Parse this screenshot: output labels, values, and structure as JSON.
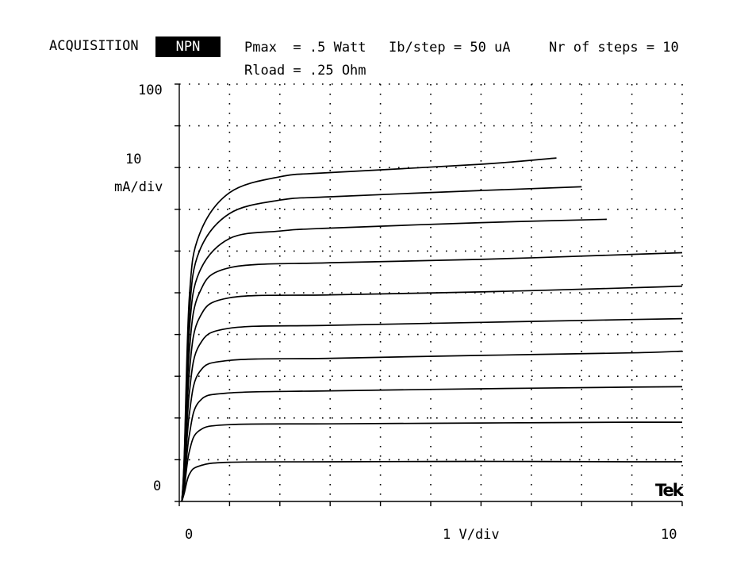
{
  "header": {
    "mode_label": "ACQUISITION",
    "device_type": "NPN",
    "pmax": "Pmax  = .5 Watt",
    "rload": "Rload = .25 Ohm",
    "ib_step": "Ib/step = 50 uA",
    "steps": "Nr of steps = 10"
  },
  "brand": "Tek",
  "chart_data": {
    "type": "line",
    "title": "",
    "xlabel": "1 V/div",
    "ylabel": "10 mA/div",
    "y_tick_labels": {
      "top": "100",
      "scale_value": "10",
      "scale_unit": "mA/div",
      "bottom": "0"
    },
    "x_tick_labels": {
      "left": "0",
      "center": "1 V/div",
      "right": "10"
    },
    "xlim": [
      0,
      10
    ],
    "ylim": [
      0,
      100
    ],
    "x_divisions": 10,
    "y_divisions": 10,
    "grid": true,
    "series": [
      {
        "x": [
          0.05,
          0.1,
          0.2,
          0.4,
          1.0,
          3.0,
          6.0,
          9.0,
          10.0
        ],
        "y": [
          0,
          2,
          6.5,
          8.5,
          9.4,
          9.5,
          9.6,
          9.5,
          9.5
        ]
      },
      {
        "x": [
          0.05,
          0.1,
          0.2,
          0.4,
          1.0,
          3.0,
          6.0,
          9.0,
          10.0
        ],
        "y": [
          0,
          3,
          12,
          17,
          18.4,
          18.6,
          18.8,
          19.0,
          19.0
        ]
      },
      {
        "x": [
          0.05,
          0.1,
          0.2,
          0.4,
          1.0,
          3.0,
          6.0,
          9.0,
          10.0
        ],
        "y": [
          0,
          4,
          16,
          24,
          26,
          26.5,
          27,
          27.4,
          27.5
        ]
      },
      {
        "x": [
          0.05,
          0.1,
          0.2,
          0.4,
          1.0,
          3.0,
          6.0,
          9.0,
          10.0
        ],
        "y": [
          0,
          5,
          21,
          31,
          33.8,
          34.3,
          35,
          35.6,
          36
        ]
      },
      {
        "x": [
          0.05,
          0.1,
          0.2,
          0.4,
          1.0,
          3.0,
          6.0,
          9.0,
          10.0
        ],
        "y": [
          0,
          6,
          26,
          37.5,
          41.5,
          42.2,
          42.9,
          43.6,
          43.8
        ]
      },
      {
        "x": [
          0.05,
          0.1,
          0.2,
          0.4,
          1.0,
          3.0,
          6.0,
          9.0,
          10.0
        ],
        "y": [
          0,
          7,
          31,
          44,
          48.8,
          49.5,
          50.2,
          51.2,
          51.6
        ]
      },
      {
        "x": [
          0.05,
          0.1,
          0.2,
          0.4,
          1.0,
          3.0,
          6.0,
          9.0,
          10.0
        ],
        "y": [
          0,
          8,
          36,
          50,
          56,
          57.2,
          58,
          59.2,
          59.6
        ]
      },
      {
        "x": [
          0.05,
          0.1,
          0.2,
          0.4,
          1.0,
          2.0,
          3.0,
          6.0,
          8.5
        ],
        "y": [
          0,
          9,
          41,
          55,
          63,
          64.8,
          65.5,
          66.8,
          67.6
        ]
      },
      {
        "x": [
          0.05,
          0.1,
          0.2,
          0.4,
          1.0,
          2.0,
          3.0,
          6.0,
          8.0
        ],
        "y": [
          0,
          10,
          45,
          60,
          69,
          72.2,
          73.0,
          74.5,
          75.4
        ]
      },
      {
        "x": [
          0.05,
          0.1,
          0.2,
          0.4,
          1.0,
          2.0,
          3.0,
          6.0,
          7.5
        ],
        "y": [
          0,
          11,
          49,
          64,
          74,
          77.8,
          78.8,
          80.8,
          82.3
        ]
      }
    ]
  }
}
